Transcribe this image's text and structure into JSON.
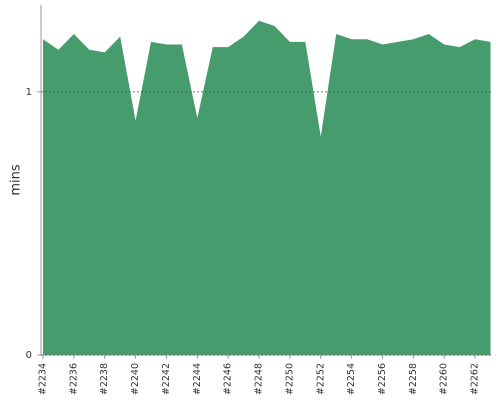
{
  "chart_data": {
    "type": "area",
    "y_label": "mins",
    "categories": [
      "#2234",
      null,
      "#2236",
      null,
      "#2238",
      null,
      "#2240",
      null,
      "#2242",
      null,
      "#2244",
      null,
      "#2246",
      null,
      "#2248",
      null,
      "#2250",
      null,
      "#2252",
      null,
      "#2254",
      null,
      "#2256",
      null,
      "#2258",
      null,
      "#2260",
      null,
      "#2262",
      null
    ],
    "values": [
      1.2,
      1.16,
      1.22,
      1.16,
      1.15,
      1.21,
      0.89,
      1.19,
      1.18,
      1.18,
      0.9,
      1.17,
      1.17,
      1.21,
      1.27,
      1.25,
      1.19,
      1.19,
      0.83,
      1.22,
      1.2,
      1.2,
      1.18,
      1.19,
      1.2,
      1.22,
      1.18,
      1.17,
      1.2,
      1.19
    ],
    "color": "#469c6c",
    "ylim": [
      0,
      1.33
    ],
    "yticks": [
      0,
      1
    ],
    "grid": true
  }
}
